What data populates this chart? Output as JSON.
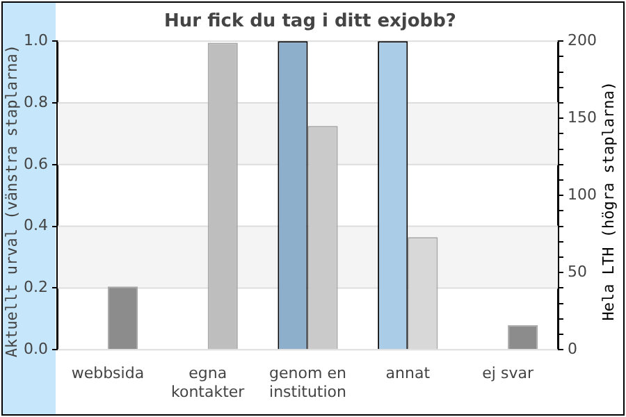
{
  "chart_data": {
    "type": "bar",
    "title": "Hur fick du tag i ditt exjobb?",
    "ylabel": "Aktuellt urval (vänstra staplarna)",
    "y2label": "Hela LTH (högra staplarna)",
    "categories": [
      "webbsida",
      "egna kontakter",
      "genom en institution",
      "annat",
      "ej svar"
    ],
    "series": [
      {
        "colors": [
          "#8eafcb",
          "#8eafcb",
          "#8eafcb",
          "#abcce6",
          "#abcce6"
        ],
        "values": [
          0,
          0,
          1,
          1,
          0
        ]
      },
      {
        "axis": "y2",
        "colors": [
          "#8c8c8c",
          "#bebebe",
          "#cacaca",
          "#d8d8d8",
          "#8c8c8c"
        ],
        "values": [
          41,
          199,
          145,
          73,
          16
        ]
      }
    ],
    "ylim": [
      0,
      1
    ],
    "yticks": [
      {
        "value": 0,
        "label": "0.0"
      },
      0.2,
      0.4,
      0.6,
      0.8,
      {
        "value": 1,
        "label": "1.0"
      }
    ],
    "y2lim": [
      0,
      200
    ],
    "y2ticks": [
      0,
      {
        "value": 10,
        "label": null
      },
      {
        "value": 20,
        "label": null
      },
      {
        "value": 30,
        "label": null
      },
      {
        "value": 40,
        "label": null
      },
      50,
      {
        "value": 60,
        "label": null
      },
      {
        "value": 70,
        "label": null
      },
      {
        "value": 80,
        "label": null
      },
      {
        "value": 90,
        "label": null
      },
      100,
      {
        "value": 110,
        "label": null
      },
      {
        "value": 120,
        "label": null
      },
      {
        "value": 130,
        "label": null
      },
      {
        "value": 140,
        "label": null
      },
      150,
      {
        "value": 160,
        "label": null
      },
      {
        "value": 170,
        "label": null
      },
      {
        "value": 180,
        "label": null
      },
      {
        "value": 190,
        "label": null
      },
      200
    ],
    "grid": "y",
    "legend": false
  }
}
